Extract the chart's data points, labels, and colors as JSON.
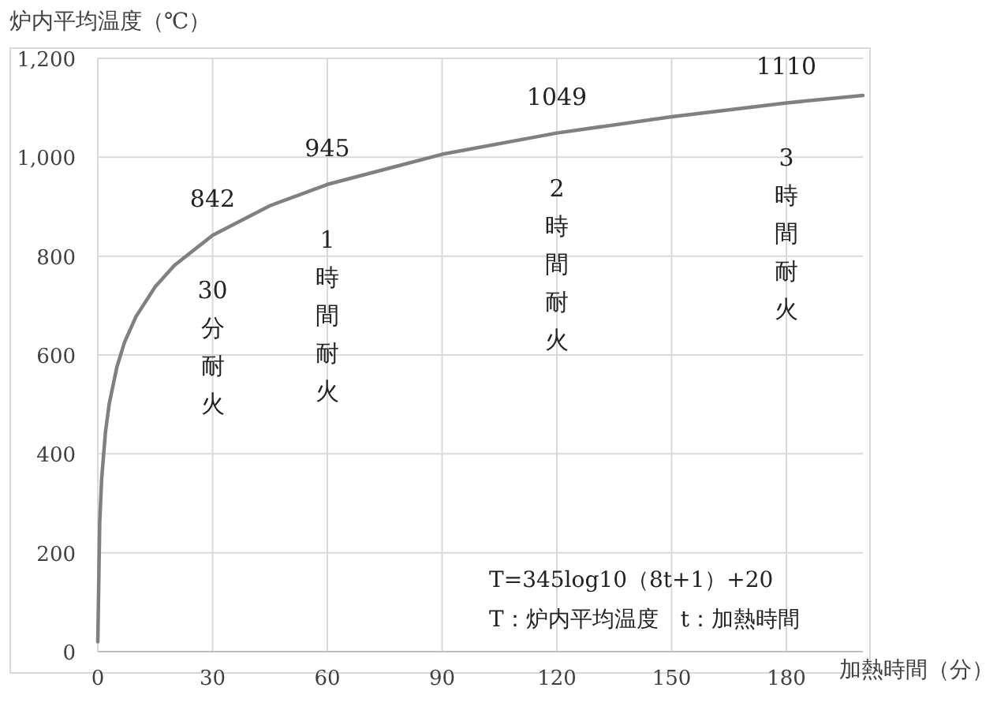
{
  "chart_data": {
    "type": "line",
    "ylabel": "炉内平均温度（℃）",
    "xlabel": "加熱時間（分）",
    "x": [
      0,
      0.5,
      1,
      2,
      3,
      5,
      7,
      10,
      15,
      20,
      30,
      45,
      60,
      90,
      120,
      150,
      180,
      200
    ],
    "values": [
      20,
      261,
      349,
      444,
      502,
      576,
      626,
      678,
      738,
      781,
      842,
      902,
      945,
      1006,
      1049,
      1082,
      1110,
      1125
    ],
    "color": "#808080",
    "xlim": [
      0,
      200
    ],
    "xticks": [
      0,
      30,
      60,
      90,
      120,
      150,
      180
    ],
    "ylim": [
      0,
      1200
    ],
    "yticks": [
      0,
      200,
      400,
      600,
      800,
      {
        "value": 1000,
        "label": "1,000"
      },
      {
        "value": 1200,
        "label": "1,200"
      }
    ],
    "grid": true,
    "marker": "none",
    "line_style": "solid",
    "annotations": [
      {
        "text": "842",
        "x": 30,
        "y": 842
      },
      {
        "text": "945",
        "x": 60,
        "y": 945
      },
      {
        "text": "1049",
        "x": 120,
        "y": 1049
      },
      {
        "text": "1110",
        "x": 180,
        "y": 1110
      },
      "30分耐火",
      "1時間耐火",
      "2時間耐火",
      "3時間耐火",
      "T=345log10（8t+1）+20",
      "T：炉内平均温度　t：加熱時間"
    ]
  }
}
